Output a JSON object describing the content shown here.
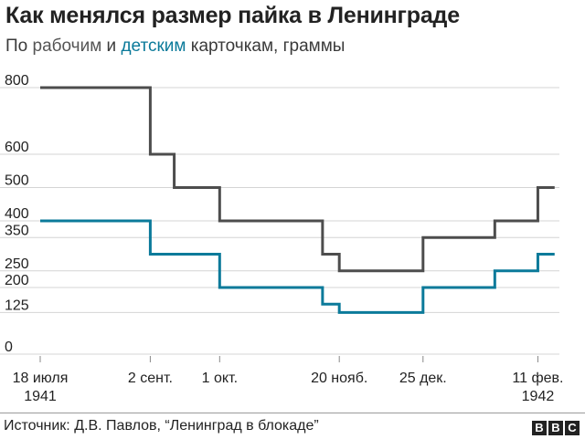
{
  "title": "Как менялся размер пайка в Ленинграде",
  "subtitle": {
    "prefix": "По ",
    "workers": "рабочим",
    "middle": " и ",
    "children": "детским",
    "suffix": " карточкам, граммы"
  },
  "source": "Источник: Д.В. Павлов, “Ленинград в блокаде”",
  "logo": [
    "B",
    "B",
    "C"
  ],
  "colors": {
    "workers": "#4d4d4d",
    "children": "#0b7a9a",
    "grid": "#d4d4d4",
    "axis_text": "#222222"
  },
  "chart_data": {
    "type": "line",
    "step": true,
    "x_ticks": [
      {
        "date": "1941-07-18",
        "label": [
          "18 июля",
          "1941"
        ]
      },
      {
        "date": "1941-09-02",
        "label": [
          "2 сент."
        ]
      },
      {
        "date": "1941-10-01",
        "label": [
          "1 окт."
        ]
      },
      {
        "date": "1941-11-20",
        "label": [
          "20 нояб."
        ]
      },
      {
        "date": "1941-12-25",
        "label": [
          "25 дек."
        ]
      },
      {
        "date": "1942-02-11",
        "label": [
          "11 фев.",
          "1942"
        ]
      }
    ],
    "y_ticks": [
      0,
      125,
      200,
      250,
      350,
      400,
      500,
      600,
      800
    ],
    "ylim": [
      0,
      800
    ],
    "xlim": [
      "1941-07-18",
      "1942-02-20"
    ],
    "grid": true,
    "series": [
      {
        "name": "рабочим",
        "color": "#4d4d4d",
        "points": [
          {
            "x": "1941-07-18",
            "y": 800
          },
          {
            "x": "1941-09-02",
            "y": 600
          },
          {
            "x": "1941-09-12",
            "y": 500
          },
          {
            "x": "1941-10-01",
            "y": 400
          },
          {
            "x": "1941-11-13",
            "y": 300
          },
          {
            "x": "1941-11-20",
            "y": 250
          },
          {
            "x": "1941-12-25",
            "y": 350
          },
          {
            "x": "1942-01-24",
            "y": 400
          },
          {
            "x": "1942-02-11",
            "y": 500
          },
          {
            "x": "1942-02-18",
            "y": 500
          }
        ]
      },
      {
        "name": "детским",
        "color": "#0b7a9a",
        "points": [
          {
            "x": "1941-07-18",
            "y": 400
          },
          {
            "x": "1941-09-02",
            "y": 300
          },
          {
            "x": "1941-10-01",
            "y": 200
          },
          {
            "x": "1941-11-13",
            "y": 150
          },
          {
            "x": "1941-11-20",
            "y": 125
          },
          {
            "x": "1941-12-25",
            "y": 200
          },
          {
            "x": "1942-01-24",
            "y": 250
          },
          {
            "x": "1942-02-11",
            "y": 300
          },
          {
            "x": "1942-02-18",
            "y": 300
          }
        ]
      }
    ]
  }
}
